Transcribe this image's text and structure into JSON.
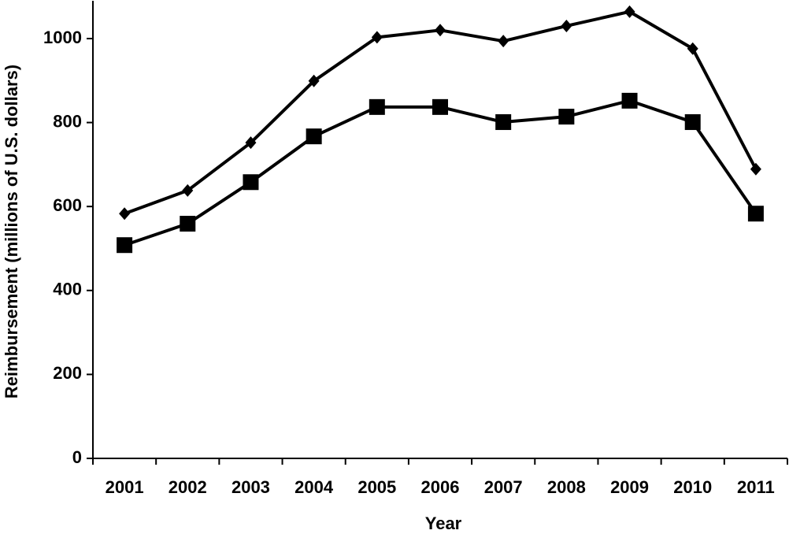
{
  "chart_data": {
    "type": "line",
    "xlabel": "Year",
    "ylabel": "Reimbursement (millions of U.S. dollars)",
    "categories": [
      "2001",
      "2002",
      "2003",
      "2004",
      "2005",
      "2006",
      "2007",
      "2008",
      "2009",
      "2010",
      "2011"
    ],
    "series": [
      {
        "color": "#000000",
        "marker": "diamond",
        "values": [
          583,
          638,
          752,
          899,
          1003,
          1020,
          994,
          1030,
          1064,
          976,
          689
        ]
      },
      {
        "color": "#000000",
        "marker": "square",
        "values": [
          508,
          559,
          658,
          767,
          837,
          837,
          801,
          814,
          852,
          801,
          583
        ]
      }
    ],
    "ylim": [
      0,
      1090
    ],
    "yticks": [
      0,
      200,
      400,
      600,
      800,
      1000
    ],
    "grid": false
  }
}
